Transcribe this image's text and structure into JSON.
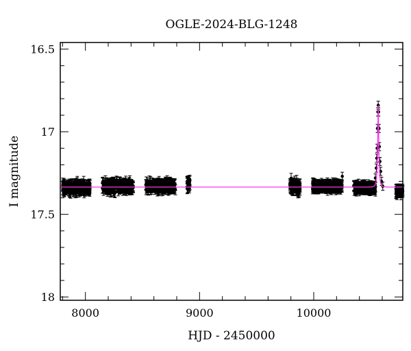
{
  "chart_data": {
    "type": "scatter",
    "title": "OGLE-2024-BLG-1248",
    "xlabel": "HJD - 2450000",
    "ylabel": "I magnitude",
    "xlim": [
      7780,
      10780
    ],
    "ylim": [
      18.02,
      16.46
    ],
    "y_inverted": true,
    "grid": false,
    "x_ticks": [
      8000,
      9000,
      10000
    ],
    "x_tick_labels": [
      "8000",
      "9000",
      "10000"
    ],
    "y_ticks": [
      16.5,
      17,
      17.5,
      18
    ],
    "y_tick_labels": [
      "16.5",
      "17",
      "17.5",
      "18"
    ],
    "series": [
      {
        "kind": "points_with_errorbars",
        "color": "#000000",
        "seasons": [
          {
            "x_start": 7800,
            "x_end": 8040,
            "mag_center": 17.34,
            "mag_scatter": 0.03,
            "err": 0.03
          },
          {
            "x_start": 8150,
            "x_end": 8420,
            "mag_center": 17.33,
            "mag_scatter": 0.03,
            "err": 0.03
          },
          {
            "x_start": 8530,
            "x_end": 8790,
            "mag_center": 17.33,
            "mag_scatter": 0.03,
            "err": 0.03
          },
          {
            "x_start": 8890,
            "x_end": 8915,
            "mag_center": 17.32,
            "mag_scatter": 0.03,
            "err": 0.03
          },
          {
            "x_start": 9790,
            "x_end": 9880,
            "mag_center": 17.33,
            "mag_scatter": 0.04,
            "err": 0.03
          },
          {
            "x_start": 9990,
            "x_end": 10250,
            "mag_center": 17.33,
            "mag_scatter": 0.02,
            "err": 0.03
          },
          {
            "x_start": 10350,
            "x_end": 10540,
            "mag_center": 17.34,
            "mag_scatter": 0.02,
            "err": 0.03
          },
          {
            "x_start": 10720,
            "x_end": 10780,
            "mag_center": 17.36,
            "mag_scatter": 0.02,
            "err": 0.03
          }
        ],
        "event_points": [
          [
            10540,
            17.28
          ],
          [
            10548,
            17.22
          ],
          [
            10552,
            17.16
          ],
          [
            10555,
            17.1
          ],
          [
            10558,
            16.98
          ],
          [
            10562,
            16.88
          ],
          [
            10565,
            16.84
          ],
          [
            10568,
            16.88
          ],
          [
            10572,
            16.98
          ],
          [
            10575,
            17.09
          ],
          [
            10580,
            17.18
          ],
          [
            10586,
            17.24
          ],
          [
            10594,
            17.3
          ],
          [
            10605,
            17.33
          ],
          [
            10250,
            17.27
          ]
        ]
      },
      {
        "kind": "model_line",
        "color": "#ff33ee",
        "baseline": 17.335,
        "peak_x": 10565,
        "peak_mag": 16.84,
        "u0": 0.25,
        "tE": 14
      }
    ]
  }
}
